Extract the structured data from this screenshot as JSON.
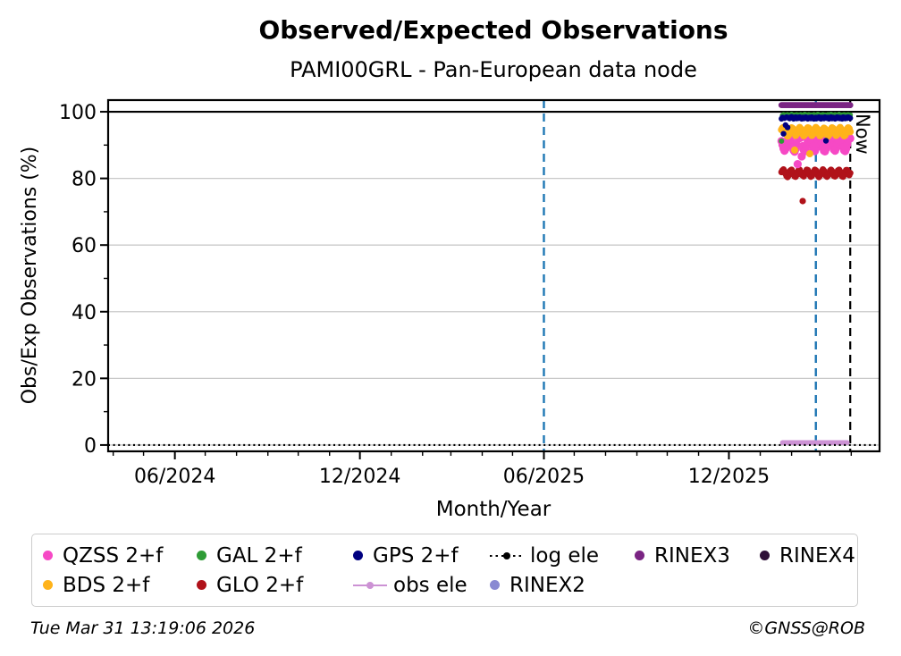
{
  "footer": {
    "timestamp": "Tue Mar 31 13:19:06 2026",
    "credit": "©GNSS@ROB"
  },
  "legend": {
    "items": [
      {
        "label": "QZSS 2+f",
        "marker": "dot",
        "color": "#F649C5"
      },
      {
        "label": "GAL 2+f",
        "marker": "dot",
        "color": "#2E9C36"
      },
      {
        "label": "GPS 2+f",
        "marker": "dot",
        "color": "#000080"
      },
      {
        "label": "log ele",
        "marker": "dotted-line-dot",
        "color": "#000000"
      },
      {
        "label": "RINEX3",
        "marker": "dot",
        "color": "#7A2483"
      },
      {
        "label": "RINEX4",
        "marker": "dot",
        "color": "#2F1038"
      },
      {
        "label": "BDS 2+f",
        "marker": "dot",
        "color": "#FFB31A"
      },
      {
        "label": "GLO 2+f",
        "marker": "dot",
        "color": "#B0121A"
      },
      {
        "label": "obs ele",
        "marker": "line-dot",
        "color": "#CC92D4"
      },
      {
        "label": "RINEX2",
        "marker": "dot",
        "color": "#8A8AD2"
      }
    ]
  },
  "chart_data": {
    "type": "scatter",
    "title": "Observed/Expected Observations",
    "subtitle": "PAMI00GRL - Pan-European data node",
    "xlabel": "Month/Year",
    "ylabel": "Obs/Exp Observations (%)",
    "now_label": "Now",
    "grid": {
      "horizontal": true,
      "vertical": false,
      "color": "#c9c9c9"
    },
    "x_axis": {
      "start_date": "2024-03-27",
      "end_date": "2026-04-29",
      "major_ticks": [
        {
          "date": "2024-06-01",
          "label": "06/2024"
        },
        {
          "date": "2024-12-01",
          "label": "12/2024"
        },
        {
          "date": "2025-06-01",
          "label": "06/2025"
        },
        {
          "date": "2025-12-01",
          "label": "12/2025"
        }
      ],
      "minor_ticks": [
        "2024-04-01",
        "2024-05-01",
        "2024-07-01",
        "2024-08-01",
        "2024-09-01",
        "2024-10-01",
        "2024-11-01",
        "2025-01-01",
        "2025-02-01",
        "2025-03-01",
        "2025-04-01",
        "2025-05-01",
        "2025-07-01",
        "2025-08-01",
        "2025-09-01",
        "2025-10-01",
        "2025-11-01",
        "2026-01-01",
        "2026-02-01",
        "2026-03-01",
        "2026-04-01"
      ]
    },
    "y_axis": {
      "min": -1.9,
      "max": 103.5,
      "major_ticks": [
        0,
        20,
        40,
        60,
        80,
        100
      ],
      "minor_ticks": [
        10,
        30,
        50,
        70,
        90
      ]
    },
    "hlines": [
      {
        "y": 100,
        "color": "#000000",
        "style": "solid",
        "width": 2.2
      }
    ],
    "vlines": [
      {
        "date": "2025-06-01",
        "color": "#1F77B4",
        "style": "dashed",
        "width": 2.4
      },
      {
        "date": "2026-02-25",
        "color": "#1F77B4",
        "style": "dashed",
        "width": 2.4
      },
      {
        "date": "2026-03-31",
        "color": "#000000",
        "style": "dashed",
        "width": 2.2,
        "label": "Now"
      }
    ],
    "series": [
      {
        "name": "obs ele",
        "style": "line",
        "color": "#CC92D4",
        "width": 5.5,
        "constant": 0.7,
        "start": "2026-01-23",
        "end": "2026-03-28"
      },
      {
        "name": "log ele",
        "style": "dotted-line",
        "color": "#000000",
        "width": 2.2,
        "constant": 0.0,
        "start": "2024-03-27",
        "end": "2026-04-29"
      },
      {
        "name": "GLO 2+f",
        "style": "scatter",
        "color": "#B0121A",
        "r": 3.6,
        "start": "2026-01-22",
        "step_days": 1,
        "values": [
          81.9,
          82.4,
          82.7,
          82.2,
          81.4,
          80.7,
          80.4,
          80.9,
          81.7,
          82.4,
          82.6,
          82.0,
          81.2,
          80.6,
          80.5,
          81.1,
          81.9,
          82.5,
          82.6,
          81.9,
          81.1,
          73.2,
          80.6,
          81.3,
          82.0,
          82.6,
          82.5,
          81.8,
          81.0,
          80.5,
          80.7,
          81.4,
          82.1,
          82.6,
          82.4,
          81.7,
          80.9,
          80.4,
          80.8,
          81.5,
          82.2,
          82.7,
          82.3,
          81.6,
          80.8,
          80.5,
          80.9,
          81.6,
          82.3,
          82.6,
          82.2,
          81.4,
          80.7,
          80.6,
          81.0,
          81.8,
          82.4,
          82.6,
          82.1,
          81.3,
          80.6,
          80.5,
          81.2,
          81.9,
          82.5,
          82.5,
          81.8,
          81.0,
          81.6
        ]
      },
      {
        "name": "QZSS 2+f",
        "style": "scatter",
        "color": "#F649C5",
        "r": 4.6,
        "start": "2026-01-22",
        "step_days": 1,
        "values": [
          91.2,
          90.1,
          89.0,
          88.3,
          88.9,
          90.2,
          91.5,
          92.3,
          92.8,
          92.1,
          90.8,
          89.4,
          88.4,
          88.0,
          88.8,
          90.0,
          84.3,
          91.9,
          92.6,
          92.2,
          86.6,
          89.7,
          88.6,
          88.1,
          88.6,
          89.8,
          91.1,
          92.1,
          92.7,
          92.3,
          91.0,
          89.6,
          88.5,
          88.2,
          89.0,
          90.3,
          91.6,
          92.4,
          92.9,
          92.0,
          90.7,
          89.3,
          88.3,
          88.1,
          88.9,
          90.1,
          91.4,
          92.2,
          92.8,
          92.4,
          91.1,
          89.7,
          88.6,
          88.3,
          89.1,
          90.4,
          91.7,
          92.5,
          93.0,
          92.1,
          90.8,
          89.4,
          88.4,
          88.2,
          89.0,
          90.2,
          91.5,
          92.3,
          92.0
        ]
      },
      {
        "name": "BDS 2+f",
        "style": "scatter",
        "color": "#FFB31A",
        "r": 4.0,
        "start": "2026-01-22",
        "step_days": 1,
        "values": [
          94.6,
          95.1,
          95.3,
          94.8,
          94.0,
          93.2,
          92.7,
          93.0,
          93.8,
          94.7,
          95.2,
          95.0,
          94.3,
          88.5,
          92.9,
          93.3,
          94.1,
          94.9,
          95.3,
          94.9,
          94.1,
          93.3,
          92.8,
          93.1,
          93.9,
          94.8,
          95.2,
          95.1,
          87.4,
          93.4,
          92.9,
          93.2,
          94.0,
          94.8,
          95.3,
          95.0,
          94.2,
          93.4,
          92.8,
          93.0,
          93.8,
          94.7,
          95.1,
          94.9,
          94.2,
          93.3,
          92.7,
          93.1,
          93.9,
          94.7,
          95.2,
          95.0,
          94.3,
          93.5,
          92.9,
          93.2,
          94.0,
          94.9,
          95.3,
          94.8,
          94.1,
          93.2,
          92.8,
          93.0,
          93.9,
          94.8,
          95.2,
          94.9,
          94.0
        ]
      },
      {
        "name": "GAL 2+f",
        "style": "scatter",
        "color": "#2E9C36",
        "r": 3.0,
        "start": "2026-01-22",
        "step_days": 1,
        "values": [
          91.2,
          98.9,
          99.1,
          98.8,
          99.0,
          98.7,
          99.1,
          98.9,
          98.8,
          99.0,
          99.2,
          98.9,
          98.7,
          99.0,
          98.8,
          99.1,
          98.9,
          99.0,
          98.8,
          99.1,
          98.9,
          98.7,
          99.0,
          99.2,
          98.8,
          99.0,
          98.9,
          99.1,
          98.8,
          99.0,
          98.7,
          98.9,
          99.1,
          99.0,
          98.8,
          99.0,
          99.2,
          98.9,
          98.7,
          99.0,
          98.9,
          99.1,
          98.8,
          99.0,
          98.9,
          98.7,
          99.1,
          99.0,
          98.8,
          99.2,
          98.9,
          99.0,
          98.7,
          99.1,
          98.9,
          98.8,
          99.0,
          99.2,
          98.9,
          98.8,
          99.0,
          98.7,
          99.1,
          98.9,
          99.0,
          98.8,
          99.1,
          98.9,
          99.0
        ]
      },
      {
        "name": "GPS 2+f",
        "style": "scatter",
        "color": "#000080",
        "r": 3.2,
        "start": "2026-01-22",
        "step_days": 1,
        "values": [
          97.9,
          98.3,
          93.4,
          98.1,
          96.0,
          98.4,
          95.3,
          98.2,
          98.0,
          98.3,
          98.5,
          98.1,
          97.9,
          98.2,
          98.4,
          98.0,
          98.3,
          98.1,
          98.4,
          98.2,
          97.9,
          98.3,
          98.0,
          98.2,
          98.4,
          98.1,
          97.9,
          98.2,
          98.3,
          98.0,
          98.4,
          98.2,
          97.9,
          98.1,
          98.3,
          98.0,
          98.2,
          98.4,
          98.1,
          97.9,
          98.3,
          98.2,
          98.0,
          98.4,
          91.3,
          98.1,
          98.3,
          97.9,
          98.2,
          98.4,
          98.0,
          98.3,
          98.1,
          97.9,
          98.2,
          98.4,
          98.1,
          98.3,
          98.0,
          98.2,
          97.9,
          98.4,
          98.2,
          98.0,
          98.3,
          98.1,
          98.4,
          98.2,
          98.1
        ]
      },
      {
        "name": "RINEX2",
        "style": "scatter",
        "color": "#8A8AD2",
        "r": 3.2,
        "values": []
      },
      {
        "name": "RINEX4",
        "style": "scatter",
        "color": "#2F1038",
        "r": 3.4,
        "values": []
      },
      {
        "name": "RINEX3",
        "style": "scatter",
        "color": "#7A2483",
        "r": 3.4,
        "constant": 102.0,
        "start": "2026-01-22",
        "end": "2026-03-31",
        "step_days": 1
      }
    ]
  }
}
